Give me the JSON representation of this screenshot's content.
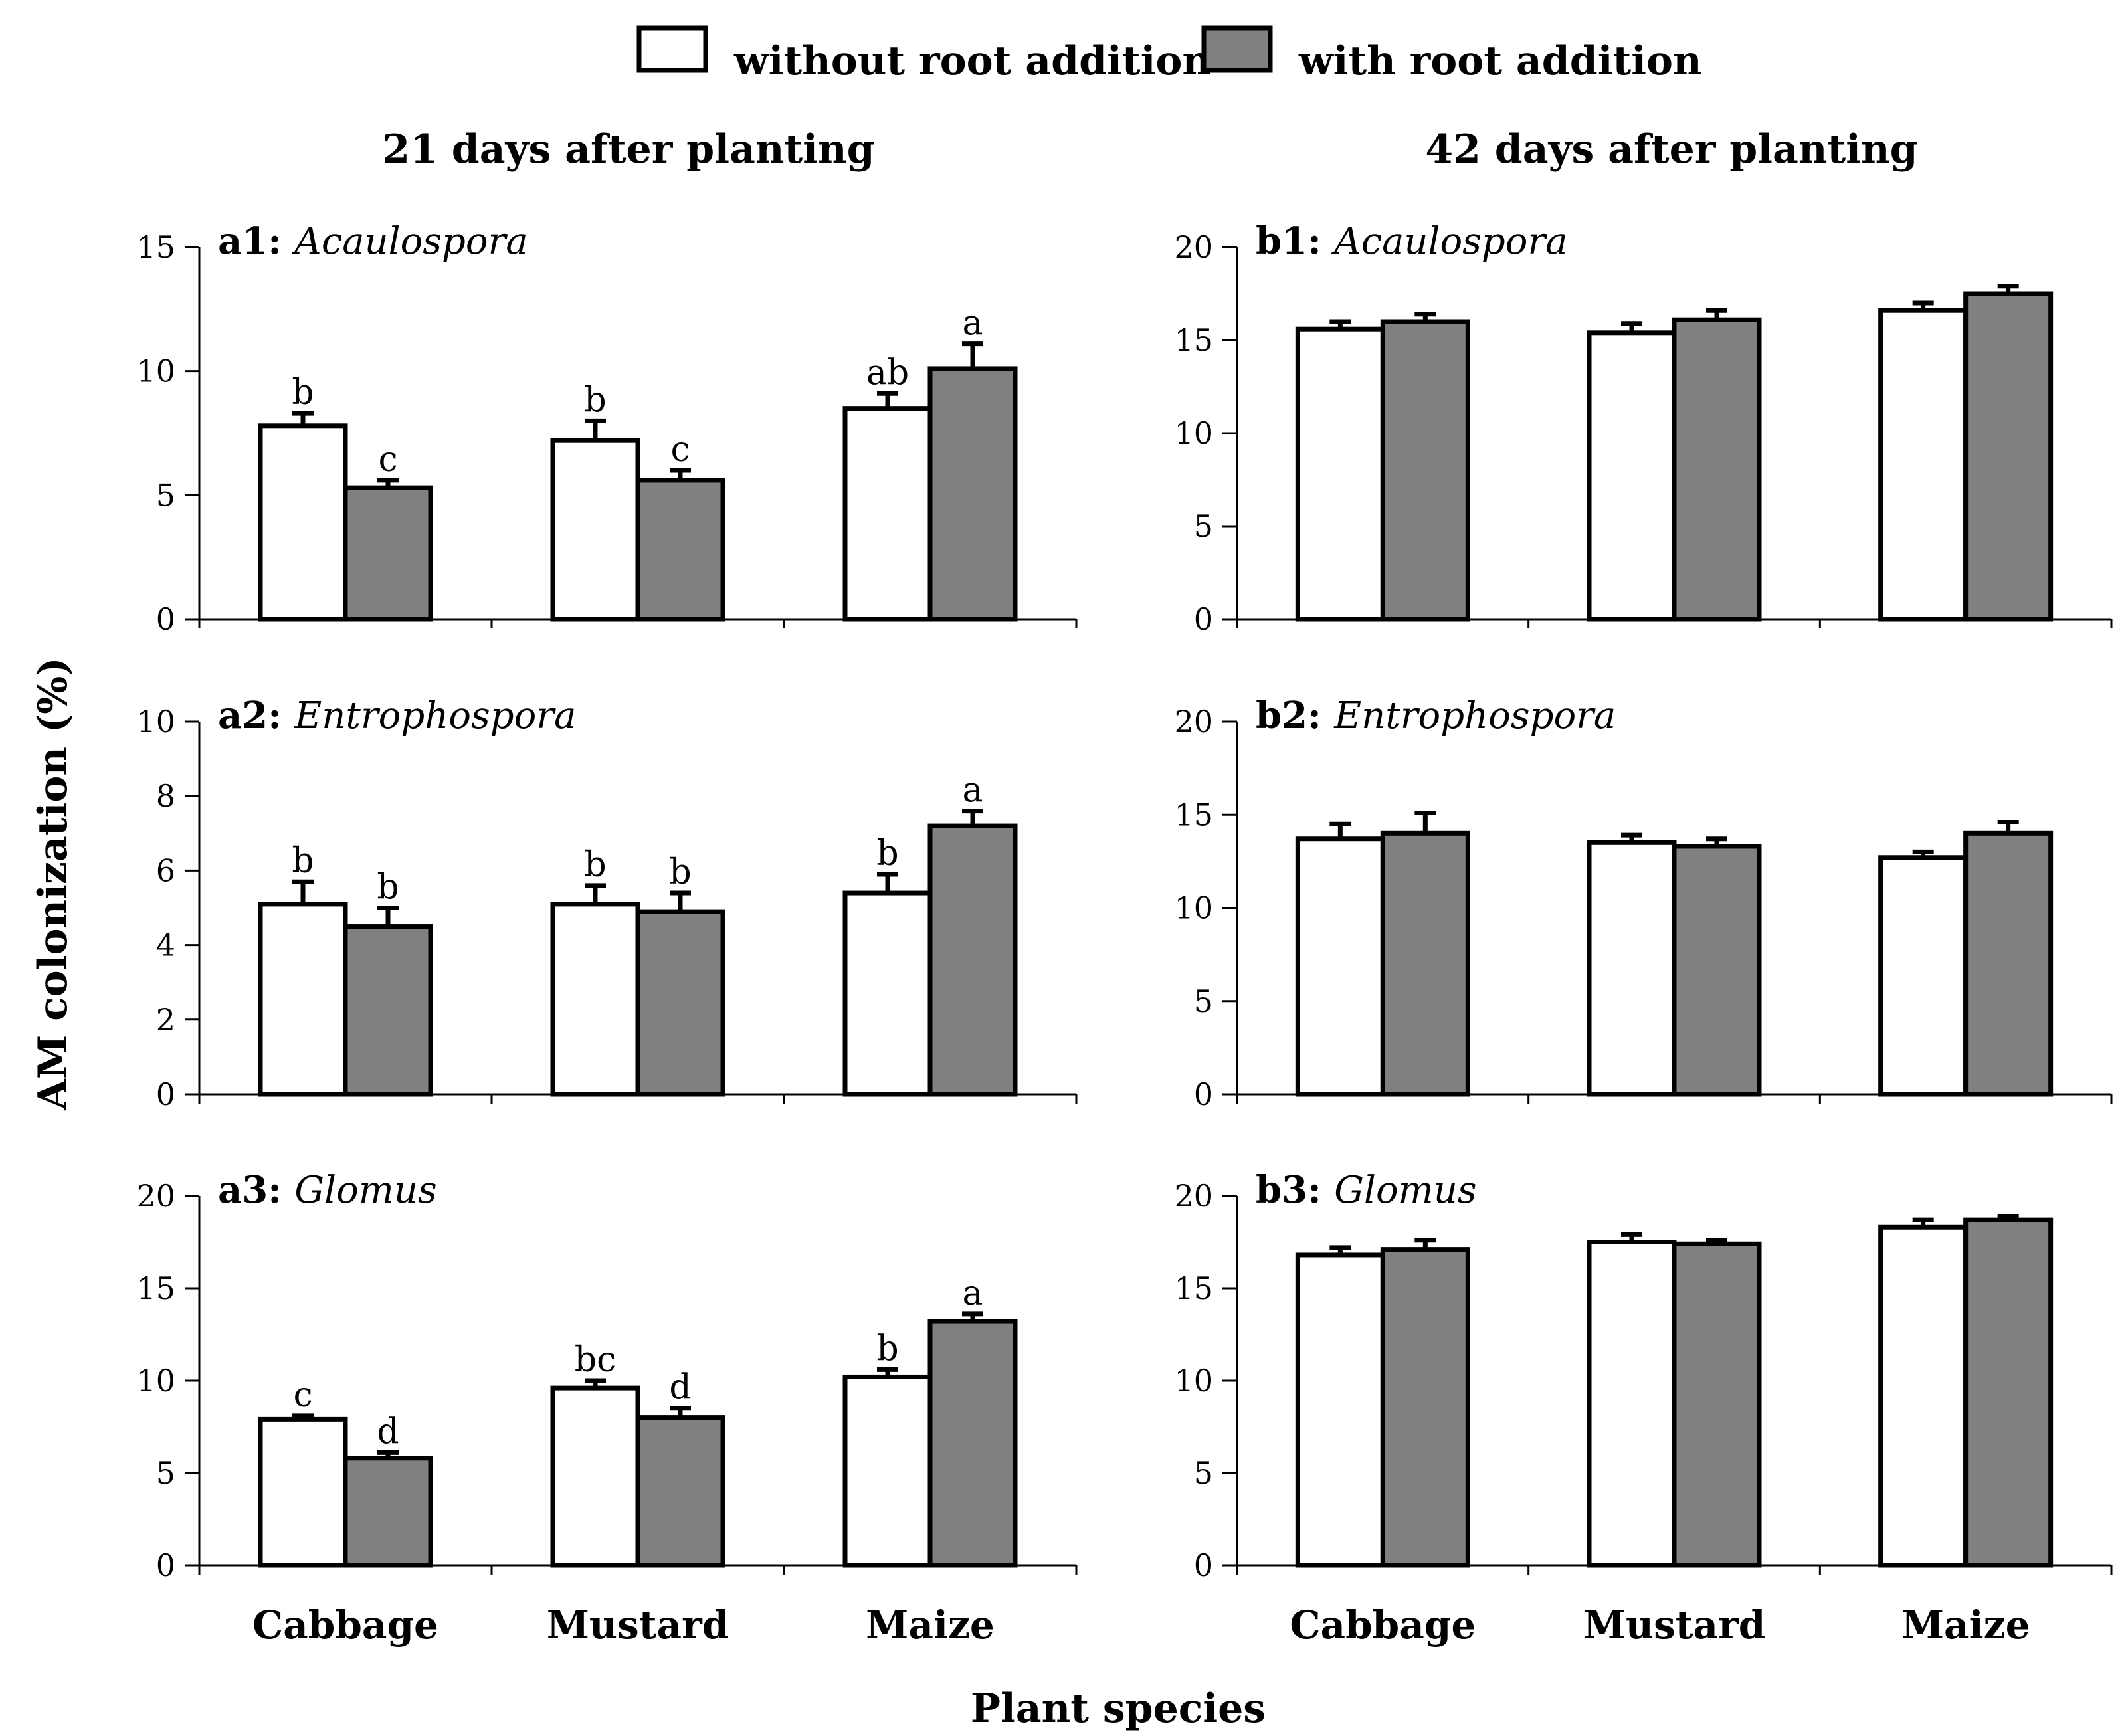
{
  "legend": {
    "without_label": "without root addition",
    "with_label": "with root addition",
    "without_color": "#ffffff",
    "with_color": "#808080"
  },
  "headers": {
    "left": "21 days after planting",
    "right": "42 days after planting"
  },
  "axis_labels": {
    "y": "AM colonization (%)",
    "x": "Plant species"
  },
  "chart_data": [
    {
      "type": "bar",
      "panel_id": "a1",
      "label": "a1:",
      "genus": "Acaulospora",
      "categories": [
        "Cabbage",
        "Mustard",
        "Maize"
      ],
      "show_categories": false,
      "ylim": [
        0,
        15
      ],
      "yticks": [
        0,
        5,
        10,
        15
      ],
      "series": [
        {
          "name": "without root addition",
          "values": [
            7.8,
            7.2,
            8.5
          ],
          "errors": [
            0.5,
            0.8,
            0.6
          ],
          "letters": [
            "b",
            "b",
            "ab"
          ]
        },
        {
          "name": "with root addition",
          "values": [
            5.3,
            5.6,
            10.1
          ],
          "errors": [
            0.3,
            0.4,
            1.0
          ],
          "letters": [
            "c",
            "c",
            "a"
          ]
        }
      ]
    },
    {
      "type": "bar",
      "panel_id": "b1",
      "label": "b1:",
      "genus": "Acaulospora",
      "categories": [
        "Cabbage",
        "Mustard",
        "Maize"
      ],
      "show_categories": false,
      "ylim": [
        0,
        20
      ],
      "yticks": [
        0,
        5,
        10,
        15,
        20
      ],
      "series": [
        {
          "name": "without root addition",
          "values": [
            15.6,
            15.4,
            16.6
          ],
          "errors": [
            0.4,
            0.5,
            0.4
          ],
          "letters": []
        },
        {
          "name": "with root addition",
          "values": [
            16.0,
            16.1,
            17.5
          ],
          "errors": [
            0.4,
            0.5,
            0.4
          ],
          "letters": []
        }
      ]
    },
    {
      "type": "bar",
      "panel_id": "a2",
      "label": "a2:",
      "genus": "Entrophospora",
      "categories": [
        "Cabbage",
        "Mustard",
        "Maize"
      ],
      "show_categories": false,
      "ylim": [
        0,
        10
      ],
      "yticks": [
        0,
        2,
        4,
        6,
        8,
        10
      ],
      "series": [
        {
          "name": "without root addition",
          "values": [
            5.1,
            5.1,
            5.4
          ],
          "errors": [
            0.6,
            0.5,
            0.5
          ],
          "letters": [
            "b",
            "b",
            "b"
          ]
        },
        {
          "name": "with root addition",
          "values": [
            4.5,
            4.9,
            7.2
          ],
          "errors": [
            0.5,
            0.5,
            0.4
          ],
          "letters": [
            "b",
            "b",
            "a"
          ]
        }
      ]
    },
    {
      "type": "bar",
      "panel_id": "b2",
      "label": "b2:",
      "genus": "Entrophospora",
      "categories": [
        "Cabbage",
        "Mustard",
        "Maize"
      ],
      "show_categories": false,
      "ylim": [
        0,
        20
      ],
      "yticks": [
        0,
        5,
        10,
        15,
        20
      ],
      "series": [
        {
          "name": "without root addition",
          "values": [
            13.7,
            13.5,
            12.7
          ],
          "errors": [
            0.8,
            0.4,
            0.3
          ],
          "letters": []
        },
        {
          "name": "with root addition",
          "values": [
            14.0,
            13.3,
            14.0
          ],
          "errors": [
            1.1,
            0.4,
            0.6
          ],
          "letters": []
        }
      ]
    },
    {
      "type": "bar",
      "panel_id": "a3",
      "label": "a3:",
      "genus": "Glomus",
      "categories": [
        "Cabbage",
        "Mustard",
        "Maize"
      ],
      "show_categories": true,
      "ylim": [
        0,
        20
      ],
      "yticks": [
        0,
        5,
        10,
        15,
        20
      ],
      "series": [
        {
          "name": "without root addition",
          "values": [
            7.9,
            9.6,
            10.2
          ],
          "errors": [
            0.2,
            0.4,
            0.4
          ],
          "letters": [
            "c",
            "bc",
            "b"
          ]
        },
        {
          "name": "with root addition",
          "values": [
            5.8,
            8.0,
            13.2
          ],
          "errors": [
            0.3,
            0.5,
            0.4
          ],
          "letters": [
            "d",
            "d",
            "a"
          ]
        }
      ]
    },
    {
      "type": "bar",
      "panel_id": "b3",
      "label": "b3:",
      "genus": "Glomus",
      "categories": [
        "Cabbage",
        "Mustard",
        "Maize"
      ],
      "show_categories": true,
      "ylim": [
        0,
        20
      ],
      "yticks": [
        0,
        5,
        10,
        15,
        20
      ],
      "series": [
        {
          "name": "without root addition",
          "values": [
            16.8,
            17.5,
            18.3
          ],
          "errors": [
            0.4,
            0.4,
            0.4
          ],
          "letters": []
        },
        {
          "name": "with root addition",
          "values": [
            17.1,
            17.4,
            18.7
          ],
          "errors": [
            0.5,
            0.2,
            0.2
          ],
          "letters": []
        }
      ]
    }
  ]
}
